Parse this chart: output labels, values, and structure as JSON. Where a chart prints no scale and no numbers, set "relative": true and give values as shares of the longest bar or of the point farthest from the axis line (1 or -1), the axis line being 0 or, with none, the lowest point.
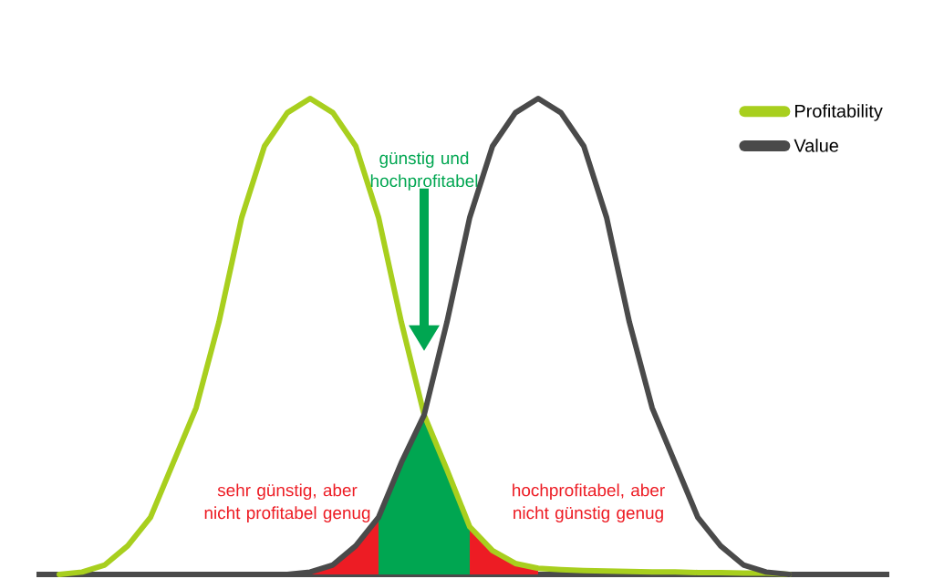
{
  "chart_data": {
    "type": "line",
    "relative": true,
    "tick_labels": false,
    "legend": "top right",
    "categories": [
      null,
      null,
      null,
      null,
      null,
      null,
      null,
      null,
      null,
      null,
      null,
      null,
      null,
      null,
      null,
      null,
      null,
      null,
      null,
      null,
      null,
      null,
      null,
      null,
      null,
      null,
      null,
      null,
      null,
      null,
      null,
      null,
      null,
      null,
      null,
      null,
      null
    ],
    "series": [
      {
        "name": "Profitability",
        "color": "#a8cf1e",
        "values": [
          0.0,
          0.005,
          0.02,
          0.06,
          0.12,
          0.235,
          0.35,
          0.53,
          0.75,
          0.9,
          0.97,
          1.0,
          0.97,
          0.9,
          0.75,
          0.53,
          0.335,
          0.22,
          0.1,
          0.05,
          0.023,
          0.013,
          0.01,
          0.008,
          0.007,
          0.006,
          0.005,
          0.005,
          0.004,
          0.004,
          0.003,
          0.003,
          0.0,
          null,
          null,
          null,
          null
        ]
      },
      {
        "name": "Value",
        "color": "#4a4a4a",
        "values": [
          null,
          null,
          null,
          null,
          null,
          null,
          null,
          null,
          null,
          null,
          0.0,
          0.005,
          0.02,
          0.06,
          0.12,
          0.235,
          0.335,
          0.53,
          0.75,
          0.9,
          0.97,
          1.0,
          0.97,
          0.9,
          0.75,
          0.53,
          0.35,
          0.235,
          0.12,
          0.06,
          0.02,
          0.005,
          0.0,
          null,
          null,
          null,
          null
        ]
      },
      {
        "type": "area",
        "color": "#ed1c24",
        "values": [
          null,
          null,
          null,
          null,
          null,
          null,
          null,
          null,
          null,
          null,
          null,
          0.005,
          0.02,
          0.06,
          0.12,
          null,
          null,
          null,
          null,
          null,
          null,
          null,
          null,
          null,
          null,
          null,
          null,
          null,
          null,
          null,
          null,
          null,
          null,
          null,
          null,
          null,
          null
        ]
      },
      {
        "type": "area",
        "color": "#00a651",
        "values": [
          null,
          null,
          null,
          null,
          null,
          null,
          null,
          null,
          null,
          null,
          null,
          null,
          null,
          null,
          0.12,
          0.235,
          0.335,
          0.22,
          0.1,
          null,
          null,
          null,
          null,
          null,
          null,
          null,
          null,
          null,
          null,
          null,
          null,
          null,
          null,
          null,
          null,
          null,
          null
        ]
      },
      {
        "type": "area",
        "color": "#ed1c24",
        "values": [
          null,
          null,
          null,
          null,
          null,
          null,
          null,
          null,
          null,
          null,
          null,
          null,
          null,
          null,
          null,
          null,
          null,
          null,
          0.1,
          0.05,
          0.023,
          0.013,
          null,
          null,
          null,
          null,
          null,
          null,
          null,
          null,
          null,
          null,
          null,
          null,
          null,
          null,
          null
        ]
      }
    ],
    "annotations": [
      "günstig und hochprofitabel",
      "sehr günstig, aber nicht profitabel genug",
      "hochprofitabel, aber nicht günstig genug"
    ]
  }
}
